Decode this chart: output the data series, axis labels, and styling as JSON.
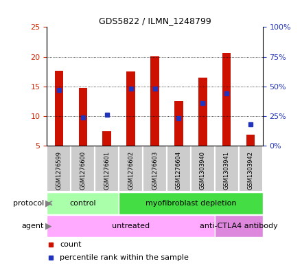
{
  "title": "GDS5822 / ILMN_1248799",
  "samples": [
    "GSM1276599",
    "GSM1276600",
    "GSM1276601",
    "GSM1276602",
    "GSM1276603",
    "GSM1276604",
    "GSM1303940",
    "GSM1303941",
    "GSM1303942"
  ],
  "counts": [
    17.6,
    14.7,
    7.4,
    17.5,
    20.1,
    12.5,
    16.5,
    20.6,
    6.9
  ],
  "percentiles": [
    47,
    24,
    26,
    48,
    48,
    23,
    36,
    44,
    18
  ],
  "ymin": 5,
  "ymax": 25,
  "yticks": [
    5,
    10,
    15,
    20,
    25
  ],
  "y2ticks": [
    0,
    25,
    50,
    75,
    100
  ],
  "protocol_groups": [
    {
      "label": "control",
      "start": 0,
      "end": 3,
      "color": "#aaffaa"
    },
    {
      "label": "myofibroblast depletion",
      "start": 3,
      "end": 9,
      "color": "#44dd44"
    }
  ],
  "agent_groups": [
    {
      "label": "untreated",
      "start": 0,
      "end": 7,
      "color": "#ffaaff"
    },
    {
      "label": "anti-CTLA4 antibody",
      "start": 7,
      "end": 9,
      "color": "#dd88dd"
    }
  ],
  "bar_color": "#cc1100",
  "dot_color": "#2233bb",
  "bar_width": 0.35,
  "legend_count_label": "count",
  "legend_pct_label": "percentile rank within the sample",
  "tick_label_color_left": "#cc2200",
  "tick_label_color_right": "#2233bb",
  "plot_bg_color": "#ffffff",
  "sample_box_color": "#cccccc"
}
